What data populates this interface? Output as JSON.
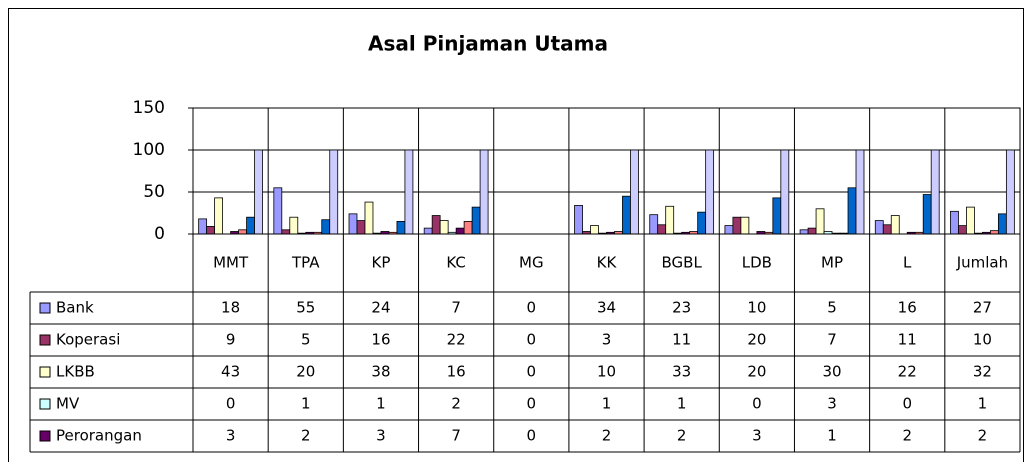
{
  "chart_data": {
    "type": "bar",
    "title": "Asal Pinjaman Utama",
    "categories": [
      "MMT",
      "TPA",
      "KP",
      "KC",
      "MG",
      "KK",
      "BGBL",
      "LDB",
      "MP",
      "L",
      "Jumlah"
    ],
    "ylim": [
      0,
      150
    ],
    "yticks": [
      0,
      50,
      100,
      150
    ],
    "grid": true,
    "series": [
      {
        "name": "Bank",
        "color": "#9999ff",
        "values": [
          18,
          55,
          24,
          7,
          0,
          34,
          23,
          10,
          5,
          16,
          27
        ]
      },
      {
        "name": "Koperasi",
        "color": "#993366",
        "values": [
          9,
          5,
          16,
          22,
          0,
          3,
          11,
          20,
          7,
          11,
          10
        ]
      },
      {
        "name": "LKBB",
        "color": "#ffffcc",
        "values": [
          43,
          20,
          38,
          16,
          0,
          10,
          33,
          20,
          30,
          22,
          32
        ]
      },
      {
        "name": "MV",
        "color": "#ccffff",
        "values": [
          0,
          1,
          1,
          2,
          0,
          1,
          1,
          0,
          3,
          0,
          1
        ]
      },
      {
        "name": "Perorangan",
        "color": "#660066",
        "values": [
          3,
          2,
          3,
          7,
          0,
          2,
          2,
          3,
          1,
          2,
          2
        ]
      },
      {
        "color": "#ff8080",
        "values": [
          5,
          2,
          2,
          15,
          0,
          3,
          3,
          2,
          1,
          2,
          4
        ]
      },
      {
        "color": "#0066cc",
        "values": [
          20,
          17,
          15,
          32,
          0,
          45,
          26,
          43,
          55,
          47,
          24
        ]
      },
      {
        "color": "#ccccff",
        "values": [
          100,
          100,
          100,
          100,
          0,
          100,
          100,
          100,
          100,
          100,
          100
        ]
      }
    ]
  }
}
